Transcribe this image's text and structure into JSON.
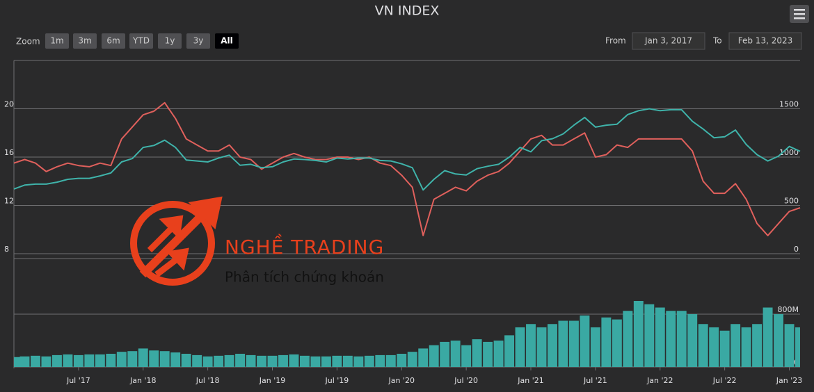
{
  "header": {
    "title": "VN INDEX"
  },
  "toolbar": {
    "zoom_label": "Zoom",
    "buttons": [
      "1m",
      "3m",
      "6m",
      "YTD",
      "1y",
      "3y",
      "All"
    ],
    "selected": 6,
    "from_label": "From",
    "from": "Jan 3, 2017",
    "to_label": "To",
    "to": "Feb 13, 2023"
  },
  "watermark": {
    "brand": "NGHỀ TRADING",
    "tagline": "Phân tích chứng khoán"
  },
  "chart_data": [
    {
      "type": "line",
      "x": [
        "2017-01",
        "2017-02",
        "2017-03",
        "2017-04",
        "2017-05",
        "2017-06",
        "2017-07",
        "2017-08",
        "2017-09",
        "2017-10",
        "2017-11",
        "2017-12",
        "2018-01",
        "2018-02",
        "2018-03",
        "2018-04",
        "2018-05",
        "2018-06",
        "2018-07",
        "2018-08",
        "2018-09",
        "2018-10",
        "2018-11",
        "2018-12",
        "2019-01",
        "2019-02",
        "2019-03",
        "2019-04",
        "2019-05",
        "2019-06",
        "2019-07",
        "2019-08",
        "2019-09",
        "2019-10",
        "2019-11",
        "2019-12",
        "2020-01",
        "2020-02",
        "2020-03",
        "2020-04",
        "2020-05",
        "2020-06",
        "2020-07",
        "2020-08",
        "2020-09",
        "2020-10",
        "2020-11",
        "2020-12",
        "2021-01",
        "2021-02",
        "2021-03",
        "2021-04",
        "2021-05",
        "2021-06",
        "2021-07",
        "2021-08",
        "2021-09",
        "2021-10",
        "2021-11",
        "2021-12",
        "2022-01",
        "2022-02",
        "2022-03",
        "2022-04",
        "2022-05",
        "2022-06",
        "2022-07",
        "2022-08",
        "2022-09",
        "2022-10",
        "2022-11",
        "2022-12",
        "2023-01",
        "2023-02"
      ],
      "ylim": [
        8,
        24
      ],
      "yticks": [
        8,
        12,
        16,
        20
      ],
      "y2lim": [
        0,
        2000
      ],
      "y2ticks": [
        0,
        500,
        1000,
        1500
      ],
      "grid": true,
      "series": [
        {
          "color": "#e0605c",
          "axis": "y",
          "values": [
            15.5,
            15.8,
            15.5,
            14.8,
            15.2,
            15.5,
            15.3,
            15.2,
            15.5,
            15.3,
            17.5,
            18.5,
            19.5,
            19.8,
            20.5,
            19.2,
            17.5,
            17.0,
            16.5,
            16.5,
            17.0,
            16.0,
            15.8,
            15.0,
            15.5,
            16.0,
            16.3,
            16.0,
            15.8,
            15.8,
            16.0,
            16.0,
            15.8,
            16.0,
            15.5,
            15.3,
            14.5,
            13.5,
            9.5,
            12.5,
            13.0,
            13.5,
            13.2,
            14.0,
            14.5,
            14.8,
            15.5,
            16.5,
            17.5,
            17.8,
            17.0,
            17.0,
            17.5,
            18.0,
            16.0,
            16.2,
            17.0,
            16.8,
            17.5,
            17.5,
            17.5,
            17.5,
            17.5,
            16.5,
            14.0,
            13.0,
            13.0,
            13.8,
            12.5,
            10.5,
            9.5,
            10.5,
            11.5,
            11.8
          ]
        },
        {
          "color": "#3fb3aa",
          "axis": "y2",
          "values": [
            670,
            710,
            720,
            720,
            740,
            770,
            780,
            780,
            805,
            835,
            950,
            985,
            1100,
            1120,
            1175,
            1100,
            970,
            960,
            950,
            990,
            1020,
            915,
            925,
            890,
            900,
            950,
            980,
            975,
            965,
            950,
            990,
            980,
            990,
            990,
            965,
            960,
            930,
            890,
            660,
            770,
            860,
            825,
            815,
            880,
            905,
            925,
            1000,
            1100,
            1055,
            1170,
            1190,
            1240,
            1330,
            1410,
            1310,
            1330,
            1340,
            1440,
            1480,
            1500,
            1480,
            1490,
            1490,
            1370,
            1290,
            1200,
            1210,
            1280,
            1130,
            1025,
            960,
            1010,
            1110,
            1060
          ]
        }
      ]
    },
    {
      "type": "bar",
      "x": [
        "2017-01",
        "2017-02",
        "2017-03",
        "2017-04",
        "2017-05",
        "2017-06",
        "2017-07",
        "2017-08",
        "2017-09",
        "2017-10",
        "2017-11",
        "2017-12",
        "2018-01",
        "2018-02",
        "2018-03",
        "2018-04",
        "2018-05",
        "2018-06",
        "2018-07",
        "2018-08",
        "2018-09",
        "2018-10",
        "2018-11",
        "2018-12",
        "2019-01",
        "2019-02",
        "2019-03",
        "2019-04",
        "2019-05",
        "2019-06",
        "2019-07",
        "2019-08",
        "2019-09",
        "2019-10",
        "2019-11",
        "2019-12",
        "2020-01",
        "2020-02",
        "2020-03",
        "2020-04",
        "2020-05",
        "2020-06",
        "2020-07",
        "2020-08",
        "2020-09",
        "2020-10",
        "2020-11",
        "2020-12",
        "2021-01",
        "2021-02",
        "2021-03",
        "2021-04",
        "2021-05",
        "2021-06",
        "2021-07",
        "2021-08",
        "2021-09",
        "2021-10",
        "2021-11",
        "2021-12",
        "2022-01",
        "2022-02",
        "2022-03",
        "2022-04",
        "2022-05",
        "2022-06",
        "2022-07",
        "2022-08",
        "2022-09",
        "2022-10",
        "2022-11",
        "2022-12",
        "2023-01",
        "2023-02"
      ],
      "color": "#3aa9a3",
      "values": [
        150000000,
        160000000,
        170000000,
        160000000,
        180000000,
        190000000,
        180000000,
        190000000,
        190000000,
        200000000,
        230000000,
        240000000,
        280000000,
        250000000,
        240000000,
        220000000,
        200000000,
        180000000,
        160000000,
        170000000,
        180000000,
        200000000,
        180000000,
        170000000,
        170000000,
        180000000,
        190000000,
        170000000,
        160000000,
        160000000,
        170000000,
        170000000,
        160000000,
        170000000,
        180000000,
        180000000,
        200000000,
        230000000,
        280000000,
        330000000,
        380000000,
        400000000,
        330000000,
        420000000,
        380000000,
        400000000,
        480000000,
        600000000,
        650000000,
        600000000,
        650000000,
        700000000,
        700000000,
        780000000,
        600000000,
        750000000,
        720000000,
        850000000,
        1000000000,
        950000000,
        900000000,
        850000000,
        850000000,
        800000000,
        650000000,
        600000000,
        550000000,
        650000000,
        600000000,
        650000000,
        900000000,
        800000000,
        650000000,
        600000000
      ],
      "ylim": [
        0,
        1600000000
      ],
      "yticks": [
        0,
        {
          "value": 800000000,
          "label": "800M"
        }
      ],
      "grid": true,
      "xticks": [
        {
          "value": "2017-07",
          "label": "Jul '17"
        },
        {
          "value": "2018-01",
          "label": "Jan '18"
        },
        {
          "value": "2018-07",
          "label": "Jul '18"
        },
        {
          "value": "2019-01",
          "label": "Jan '19"
        },
        {
          "value": "2019-07",
          "label": "Jul '19"
        },
        {
          "value": "2020-01",
          "label": "Jan '20"
        },
        {
          "value": "2020-07",
          "label": "Jul '20"
        },
        {
          "value": "2021-01",
          "label": "Jan '21"
        },
        {
          "value": "2021-07",
          "label": "Jul '21"
        },
        {
          "value": "2022-01",
          "label": "Jan '22"
        },
        {
          "value": "2022-07",
          "label": "Jul '22"
        },
        {
          "value": "2023-01",
          "label": "Jan '23"
        }
      ]
    }
  ]
}
